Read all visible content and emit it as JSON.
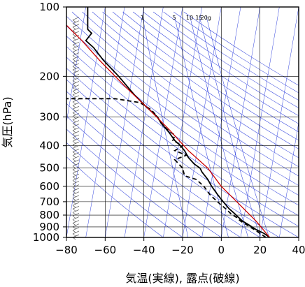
{
  "chart_data": {
    "type": "line",
    "title": "",
    "xlabel": "気温(実線), 露点(破線)",
    "ylabel": "気圧(hPa)",
    "x_range": [
      -80,
      40
    ],
    "y_range": [
      1000,
      100
    ],
    "y_scale": "log",
    "x_ticks": [
      "−80",
      "−60",
      "−40",
      "−20",
      "0",
      "20",
      "40"
    ],
    "x_tick_values": [
      -80,
      -60,
      -40,
      -20,
      0,
      20,
      40
    ],
    "y_ticks": [
      "100",
      "200",
      "300",
      "400",
      "500",
      "600",
      "700",
      "800",
      "900",
      "1000"
    ],
    "y_tick_values": [
      100,
      200,
      300,
      400,
      500,
      600,
      700,
      800,
      900,
      1000
    ],
    "mixing_ratio_labels": [
      "1",
      "5",
      "10",
      "15",
      "20g"
    ],
    "colors": {
      "temperature": "#000000",
      "dewpoint": "#000000",
      "parcel": "#cc0000",
      "background_lines": "#3344dd",
      "grid": "#000000"
    },
    "series": [
      {
        "id": "temperature",
        "style": "solid",
        "points": [
          [
            25,
            1000
          ],
          [
            22,
            960
          ],
          [
            18,
            925
          ],
          [
            14,
            880
          ],
          [
            11,
            850
          ],
          [
            9,
            820
          ],
          [
            7,
            790
          ],
          [
            4,
            750
          ],
          [
            1,
            700
          ],
          [
            -2,
            650
          ],
          [
            -5,
            600
          ],
          [
            -7,
            560
          ],
          [
            -10,
            520
          ],
          [
            -11,
            500
          ],
          [
            -14,
            480
          ],
          [
            -17,
            450
          ],
          [
            -19,
            420
          ],
          [
            -21,
            400
          ],
          [
            -24,
            380
          ],
          [
            -27,
            350
          ],
          [
            -31,
            320
          ],
          [
            -33,
            300
          ],
          [
            -39,
            270
          ],
          [
            -45,
            240
          ],
          [
            -53,
            200
          ],
          [
            -61,
            170
          ],
          [
            -66,
            150
          ],
          [
            -70,
            140
          ],
          [
            -67,
            130
          ],
          [
            -69,
            125
          ],
          [
            -69,
            115
          ],
          [
            -69,
            100
          ]
        ]
      },
      {
        "id": "dewpoint",
        "style": "dashed",
        "points": [
          [
            23,
            1000
          ],
          [
            20,
            960
          ],
          [
            17,
            925
          ],
          [
            13,
            880
          ],
          [
            10,
            850
          ],
          [
            8,
            820
          ],
          [
            5,
            790
          ],
          [
            3,
            760
          ],
          [
            -2,
            700
          ],
          [
            -6,
            650
          ],
          [
            -9,
            600
          ],
          [
            -13,
            560
          ],
          [
            -19,
            540
          ],
          [
            -20,
            500
          ],
          [
            -22,
            480
          ],
          [
            -24,
            460
          ],
          [
            -18,
            440
          ],
          [
            -24,
            420
          ],
          [
            -20,
            400
          ],
          [
            -25,
            380
          ],
          [
            -24,
            360
          ],
          [
            -28,
            340
          ],
          [
            -31,
            320
          ],
          [
            -33,
            300
          ],
          [
            -36,
            280
          ],
          [
            -42,
            260
          ],
          [
            -55,
            250
          ],
          [
            -80,
            250
          ]
        ]
      },
      {
        "id": "parcel",
        "style": "solid-red",
        "points": [
          [
            25,
            1000
          ],
          [
            18,
            850
          ],
          [
            8,
            700
          ],
          [
            0,
            600
          ],
          [
            -7,
            500
          ],
          [
            -17,
            420
          ],
          [
            -27,
            340
          ],
          [
            -37,
            280
          ],
          [
            -50,
            220
          ],
          [
            -63,
            170
          ],
          [
            -72,
            140
          ],
          [
            -80,
            120
          ]
        ]
      }
    ]
  }
}
